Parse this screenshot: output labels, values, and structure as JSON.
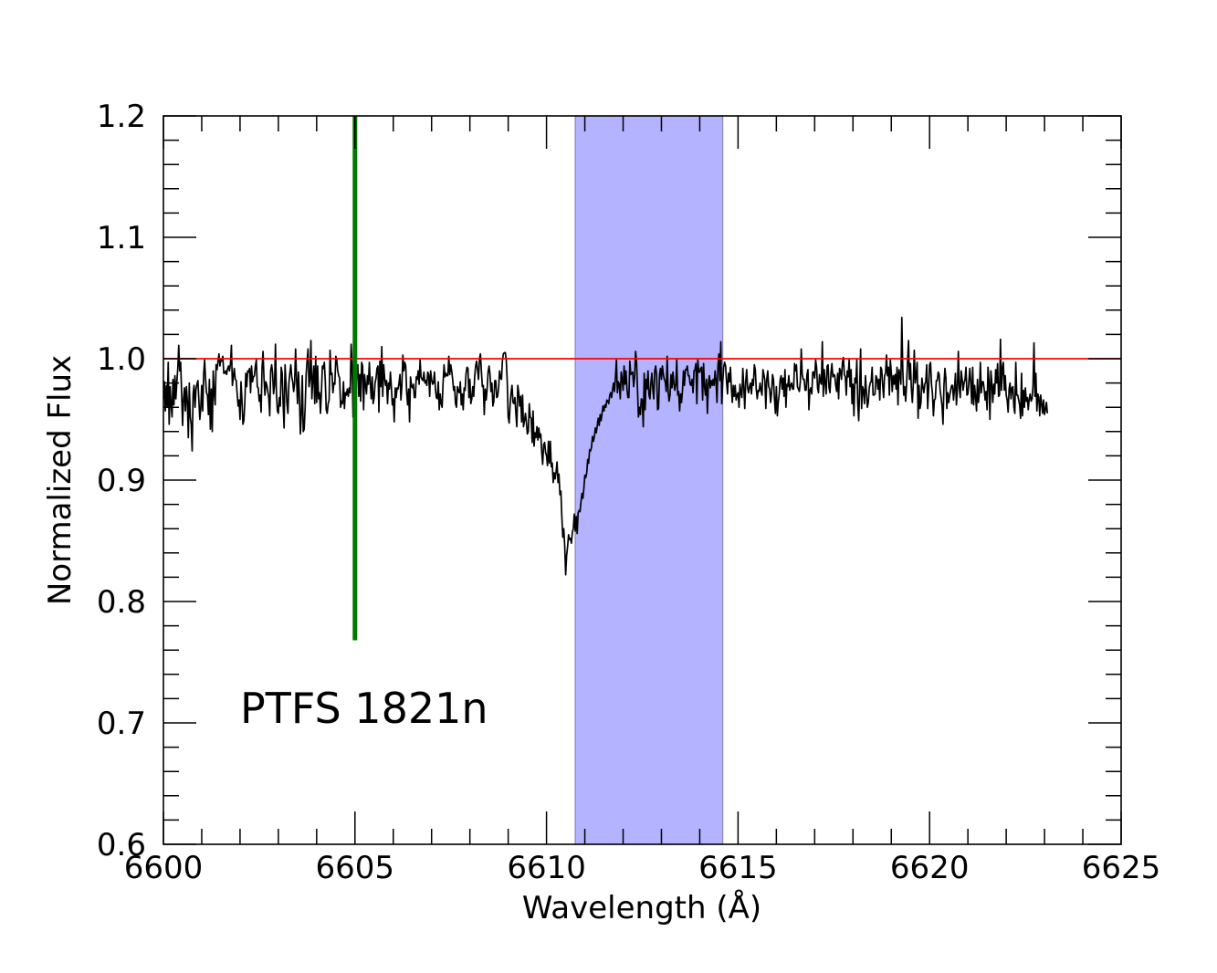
{
  "chart_data": {
    "type": "line",
    "title": "",
    "xlabel": "Wavelength (Å)",
    "ylabel": "Normalized Flux",
    "xlim": [
      6600,
      6625
    ],
    "ylim": [
      0.6,
      1.2
    ],
    "x_ticks": [
      6600,
      6605,
      6610,
      6615,
      6620,
      6625
    ],
    "x_tick_labels": [
      "6600",
      "6605",
      "6610",
      "6615",
      "6620",
      "6625"
    ],
    "y_ticks": [
      0.6,
      0.7,
      0.8,
      0.9,
      1.0,
      1.1,
      1.2
    ],
    "y_tick_labels": [
      "0.6",
      "0.7",
      "0.8",
      "0.9",
      "1.0",
      "1.1",
      "1.2"
    ],
    "x_minor_step": 1,
    "y_minor_step": 0.02,
    "grid": false,
    "annotation": "PTFS 1821n",
    "continuum": {
      "y": 1.0,
      "color": "#ff0000"
    },
    "marker_line": {
      "x": 6605.0,
      "y_from": 0.768,
      "y_to": 1.2,
      "color": "#007700"
    },
    "shaded_band": {
      "x_from": 6610.75,
      "x_to": 6614.6,
      "color": "#b3b3ff"
    },
    "spectrum": {
      "color": "#000000",
      "x_start": 6600,
      "x_step": 0.025,
      "y": [
        0.967,
        0.981,
        0.957,
        0.978,
        0.96,
        0.997,
        0.946,
        0.977,
        0.962,
        0.952,
        0.983,
        0.962,
        0.986,
        0.967,
        0.981,
        0.992,
        1.011,
        0.99,
        0.997,
        0.972,
        0.945,
        0.967,
        0.976,
        0.957,
        0.977,
        0.965,
        0.935,
        0.98,
        0.952,
        0.946,
        0.924,
        0.971,
        0.978,
        0.96,
        0.975,
        0.979,
        0.982,
        0.966,
        0.95,
        0.959,
        0.978,
        0.957,
        0.987,
        0.999,
        0.983,
        0.972,
        0.97,
        0.954,
        0.983,
        0.942,
        0.975,
        0.94,
        0.99,
        0.972,
        0.962,
        0.995,
        0.991,
        0.998,
        1.004,
        0.994,
        1.0,
        0.998,
        1.002,
        0.988,
        0.988,
        0.99,
        0.987,
        0.992,
        0.994,
        0.99,
        0.996,
        1.011,
        0.978,
        0.985,
        0.992,
        0.983,
        0.982,
        0.971,
        0.961,
        0.966,
        0.95,
        0.981,
        0.966,
        0.946,
        0.949,
        0.964,
        0.988,
        0.977,
        0.99,
        0.989,
        0.992,
        0.972,
        0.994,
        0.981,
        0.985,
        0.986,
        0.994,
        0.999,
        0.977,
        0.976,
        0.965,
        0.97,
        0.956,
        0.993,
        1.006,
        0.984,
        0.97,
        0.981,
        0.978,
        0.973,
        0.968,
        0.953,
        0.99,
        0.995,
        0.988,
        0.971,
        0.978,
        1.012,
        0.972,
        0.957,
        0.955,
        0.968,
        0.961,
        0.993,
        0.988,
        0.963,
        0.943,
        0.995,
        0.979,
        0.963,
        0.955,
        0.98,
        0.988,
        0.995,
        0.985,
        0.981,
        0.973,
        0.98,
        1.008,
        0.984,
        0.963,
        0.989,
        0.969,
        0.938,
        0.955,
        0.986,
        0.94,
        0.942,
        0.96,
        0.987,
        0.998,
        1.008,
        0.977,
        0.983,
        1.015,
        0.967,
        0.983,
        0.994,
        0.963,
        1.002,
        0.964,
        0.994,
        0.967,
        0.972,
        0.955,
        0.973,
        0.994,
        0.992,
        0.997,
        0.982,
        0.958,
        0.955,
        0.963,
        0.966,
        1.007,
        0.987,
        0.988,
        0.972,
        0.98,
        0.979,
        1.002,
        0.999,
        0.99,
        0.986,
        0.984,
        0.96,
        0.965,
        0.963,
        0.981,
        0.959,
        0.972,
        0.97,
        0.975,
        0.969,
        0.976,
        0.972,
        1.012,
        0.994,
        0.952,
        1.007,
        0.956,
        0.977,
        0.989,
        0.995,
        0.969,
        0.987,
        0.965,
        0.997,
        0.994,
        0.958,
        0.987,
        0.978,
        0.971,
        0.986,
        0.979,
        0.997,
        0.98,
        0.967,
        0.985,
        0.963,
        0.968,
        0.98,
        0.984,
        0.992,
        0.994,
        0.956,
        0.998,
        0.977,
        1.01,
        0.969,
        0.995,
        0.984,
        0.978,
        0.982,
        0.963,
        0.98,
        0.975,
        0.989,
        0.977,
        0.962,
        0.967,
        0.948,
        0.976,
        0.968,
        0.976,
        0.975,
        0.98,
        0.987,
        0.966,
        0.978,
        1.003,
        0.99,
        0.997,
        0.994,
        0.972,
        0.962,
        0.975,
        0.948,
        0.985,
        0.978,
        0.976,
        0.979,
        0.968,
        0.968,
        0.985,
        0.983,
        0.99,
        0.979,
        0.999,
        0.985,
        0.983,
        0.982,
        0.989,
        0.98,
        0.982,
        0.978,
        0.989,
        0.987,
        0.969,
        0.99,
        0.983,
        0.979,
        0.98,
        0.989,
        0.975,
        0.968,
        0.967,
        0.981,
        0.958,
        0.971,
        0.963,
        0.96,
        0.98,
        0.995,
        0.985,
        0.988,
        0.986,
        0.986,
        1.002,
        0.987,
        0.995,
        0.99,
        0.983,
        0.974,
        0.977,
        0.963,
        0.96,
        0.977,
        0.973,
        0.972,
        0.981,
        0.962,
        0.971,
        0.958,
        0.976,
        0.974,
        0.988,
        0.993,
        0.992,
        0.968,
        0.983,
        0.963,
        0.967,
        0.977,
        0.969,
        0.985,
        0.994,
        0.998,
        0.991,
        0.983,
        1.0,
        1.004,
        0.99,
        0.977,
        0.978,
        0.954,
        0.975,
        0.966,
        0.975,
        0.989,
        0.994,
        0.987,
        0.973,
        0.98,
        0.961,
        0.965,
        0.982,
        0.982,
        0.968,
        0.969,
        0.976,
        0.99,
        0.984,
        0.983,
        0.999,
        1.004,
        1.005,
        1.005,
        0.999,
        0.981,
        0.952,
        0.947,
        0.962,
        0.972,
        0.978,
        0.964,
        0.963,
        0.968,
        0.955,
        0.944,
        0.978,
        0.972,
        0.961,
        0.969,
        0.948,
        0.97,
        0.944,
        0.949,
        0.955,
        0.948,
        0.938,
        0.94,
        0.963,
        0.952,
        0.951,
        0.931,
        0.957,
        0.928,
        0.939,
        0.935,
        0.944,
        0.933,
        0.943,
        0.935,
        0.938,
        0.923,
        0.913,
        0.929,
        0.931,
        0.923,
        0.92,
        0.912,
        0.932,
        0.914,
        0.932,
        0.911,
        0.914,
        0.898,
        0.906,
        0.901,
        0.907,
        0.915,
        0.898,
        0.905,
        0.888,
        0.891,
        0.87,
        0.853,
        0.86,
        0.846,
        0.822,
        0.838,
        0.845,
        0.855,
        0.851,
        0.852,
        0.848,
        0.857,
        0.86,
        0.872,
        0.858,
        0.87,
        0.856,
        0.873,
        0.875,
        0.874,
        0.882,
        0.889,
        0.885,
        0.893,
        0.904,
        0.902,
        0.906,
        0.917,
        0.914,
        0.925,
        0.924,
        0.927,
        0.936,
        0.932,
        0.936,
        0.943,
        0.939,
        0.945,
        0.951,
        0.945,
        0.954,
        0.949,
        0.955,
        0.961,
        0.957,
        0.962,
        0.96,
        0.966,
        0.965,
        0.963,
        0.97,
        0.972,
        0.968,
        0.975,
        0.98,
        0.973,
        0.985,
        0.999,
        0.972,
        0.981,
        0.979,
        0.967,
        0.989,
        0.983,
        0.974,
        0.994,
        0.979,
        0.99,
        0.975,
        0.968,
        0.968,
        0.998,
        0.987,
        0.988,
        0.989,
        0.977,
        0.985,
        1.006,
        0.998,
        0.975,
        0.952,
        0.96,
        0.954,
        0.967,
        0.966,
        0.944,
        0.988,
        0.958,
        0.983,
        0.975,
        0.99,
        0.97,
        0.967,
        0.98,
        0.988,
        0.975,
        0.967,
        0.99,
        0.994,
        0.986,
        0.958,
        0.959,
        0.987,
        0.992,
        0.983,
        0.994,
        0.987,
        0.983,
        0.981,
        0.973,
        1.002,
        0.973,
        0.965,
        0.97,
        0.987,
        0.976,
        0.989,
        0.98,
        0.974,
        0.979,
        0.999,
        0.97,
        0.973,
        0.957,
        0.971,
        0.964,
        0.974,
        0.99,
        0.978,
        0.991,
        0.991,
        0.994,
        0.986,
        0.986,
        0.979,
        0.978,
        0.983,
        0.972,
        0.99,
        0.991,
        0.996,
        0.963,
        0.999,
        0.989,
        0.989,
        0.992,
        0.993,
        0.966,
        0.996,
        0.977,
        0.97,
        0.983,
        0.955,
        0.979,
        0.986,
        0.976,
        0.982,
        0.978,
        0.983,
        0.978,
        0.99,
        0.982,
        0.964,
        0.994,
        1.004,
        0.982,
        1.014,
        0.963,
        0.981,
        0.993,
        0.997,
        0.994,
        0.981,
        0.971,
        0.988,
        0.981,
        0.993,
        0.976,
        0.964,
        0.978,
        0.969,
        0.978,
        0.966,
        0.97,
        0.972,
        0.96,
        0.979,
        0.972,
        0.968,
        0.992,
        0.977,
        0.959,
        0.981,
        0.991,
        0.976,
        0.972,
        0.977,
        0.98,
        0.971,
        0.983,
        0.978,
        0.995,
        0.991,
        0.975,
        0.967,
        0.974,
        0.973,
        0.98,
        0.974,
        0.97,
        0.991,
        0.987,
        0.982,
        0.959,
        0.983,
        0.99,
        0.977,
        0.975,
        0.964,
        0.972,
        0.987,
        0.983,
        0.967,
        0.955,
        0.977,
        0.953,
        0.964,
        0.971,
        0.983,
        0.986,
        0.975,
        0.984,
        0.969,
        0.991,
        0.96,
        0.979,
        0.977,
        0.986,
        0.974,
        0.978,
        0.98,
        0.975,
        0.975,
        0.996,
        0.99,
        0.995,
        0.977,
        0.975,
        0.973,
        0.981,
        1.008,
        0.987,
        0.983,
        0.983,
        0.974,
        0.974,
        0.987,
        0.991,
        0.958,
        0.974,
        0.976,
        0.971,
        0.989,
        0.989,
        0.984,
        0.999,
        0.993,
        0.976,
        0.972,
        0.987,
        0.981,
        0.979,
        1.014,
        0.969,
        0.991,
        0.98,
        0.971,
        0.994,
        0.995,
        0.976,
        0.972,
        0.988,
        0.996,
        0.985,
        0.987,
        0.986,
        0.978,
        0.973,
        0.988,
        0.967,
        0.992,
        0.99,
        0.983,
        0.997,
        1.001,
        0.987,
        0.985,
        0.97,
        0.99,
        0.985,
        0.999,
        0.977,
        0.991,
        0.963,
        0.979,
        0.953,
        0.984,
        0.98,
        0.999,
        0.963,
        0.949,
        0.977,
        1.008,
        0.959,
        0.977,
        0.974,
        0.963,
        0.986,
        0.973,
        0.96,
        0.964,
        0.976,
        0.98,
        0.981,
        0.993,
        0.97,
        0.97,
        0.971,
        0.986,
        0.984,
        0.975,
        0.983,
        0.966,
        0.993,
        0.991,
        0.978,
        0.968,
        0.986,
        0.988,
        1.003,
        0.986,
        0.993,
        0.97,
        0.999,
        0.989,
        0.973,
        0.986,
        0.979,
        0.987,
        0.975,
        0.993,
        0.962,
        0.991,
        0.987,
        0.979,
        1.034,
        0.991,
        0.97,
        0.977,
        0.965,
        0.979,
        0.998,
        1.015,
        0.983,
        0.996,
        0.975,
        0.964,
        0.98,
        1.007,
        0.98,
        0.986,
        0.997,
        0.951,
        0.978,
        0.959,
        0.964,
        0.984,
        0.977,
        0.972,
        0.979,
        0.981,
        0.995,
        0.959,
        0.975,
        0.995,
        0.997,
        0.979,
        0.971,
        0.953,
        0.966,
        0.967,
        0.982,
        0.982,
        0.989,
        0.987,
        0.974,
        0.968,
        0.961,
        0.946,
        0.978,
        0.992,
        0.984,
        0.959,
        0.972,
        0.964,
        0.97,
        0.974,
        0.978,
        0.978,
        0.966,
        0.975,
        0.988,
        0.962,
        0.975,
        1.006,
        0.976,
        0.968,
        0.99,
        0.983,
        0.974,
        0.98,
        0.983,
        0.993,
        0.97,
        0.971,
        0.981,
        0.992,
        0.98,
        0.963,
        0.993,
        0.962,
        0.978,
        0.969,
        0.957,
        0.983,
        0.964,
        0.972,
        0.997,
        0.972,
        0.981,
        0.981,
        0.975,
        0.966,
        0.973,
        0.958,
        0.993,
        0.981,
        0.95,
        0.99,
        0.98,
        0.964,
        0.979,
        0.971,
        0.991,
        0.98,
        0.996,
        0.969,
        0.97,
        1.016,
        0.974,
        0.992,
        0.997,
        0.974,
        0.986,
        0.97,
        0.966,
        0.956,
        0.975,
        0.98,
        0.967,
        0.976,
        0.977,
        0.96,
        0.955,
        0.997,
        0.97,
        0.97,
        0.966,
        0.962,
        0.951,
        0.988,
        0.953,
        0.974,
        0.96,
        0.976,
        0.965,
        0.968,
        0.958,
        0.967,
        0.971,
        0.965,
        0.967,
        0.978,
        1.013,
        0.969,
        0.988,
        0.957,
        0.971,
        0.968,
        0.953,
        0.97,
        0.963,
        0.955,
        0.966,
        0.954,
        0.958,
        0.964,
        0.955
      ]
    }
  }
}
